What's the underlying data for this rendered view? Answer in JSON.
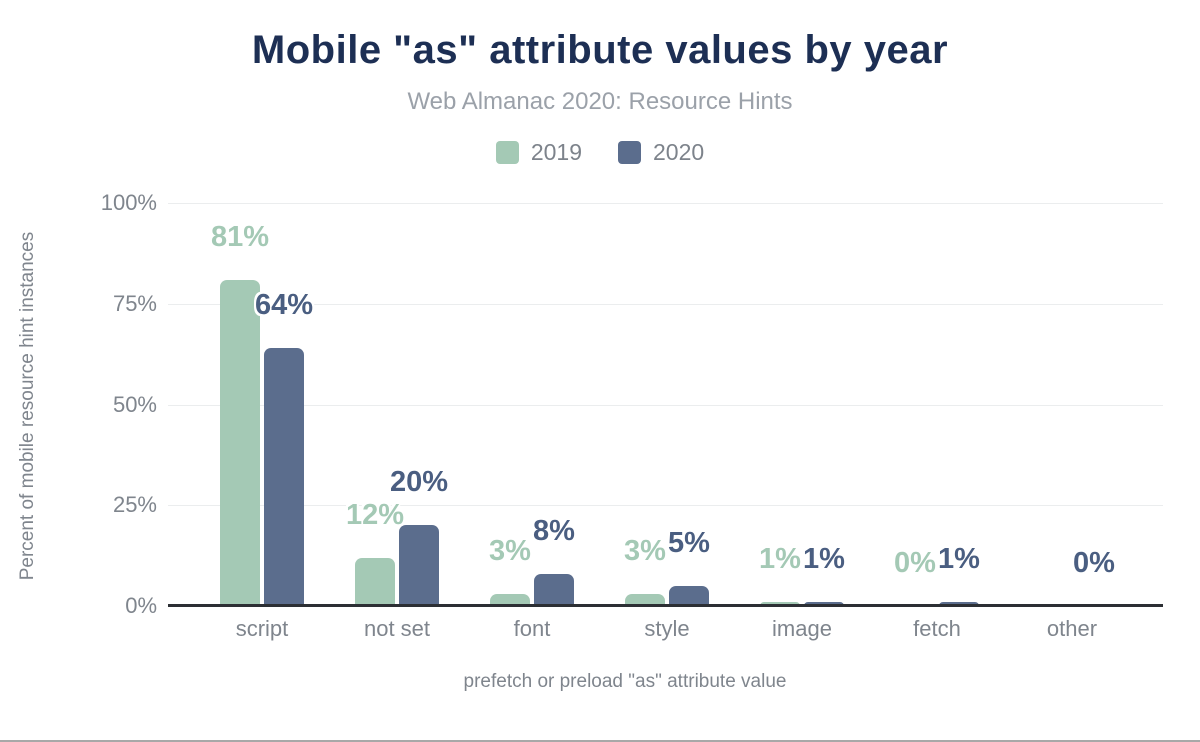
{
  "chart_data": {
    "type": "bar",
    "title": "Mobile \"as\" attribute values by year",
    "subtitle": "Web Almanac 2020: Resource Hints",
    "xlabel": "prefetch or preload \"as\" attribute value",
    "ylabel": "Percent of mobile resource hint instances",
    "categories": [
      "script",
      "not set",
      "font",
      "style",
      "image",
      "fetch",
      "other"
    ],
    "series": [
      {
        "name": "2019",
        "color": "#a4c9b5",
        "label_color": "#a4c9b5",
        "values": [
          81,
          12,
          3,
          3,
          1,
          0,
          null
        ]
      },
      {
        "name": "2020",
        "color": "#5b6d8d",
        "label_color": "#4a5e81",
        "values": [
          64,
          20,
          8,
          5,
          1,
          1,
          0
        ]
      }
    ],
    "ylim": [
      0,
      100
    ],
    "yticks": [
      0,
      25,
      50,
      75,
      100
    ],
    "ytick_labels": [
      "0%",
      "25%",
      "50%",
      "75%",
      "100%"
    ],
    "value_label_suffix": "%",
    "grid": true,
    "legend_position": "top"
  },
  "style_colors": {
    "title": "#1d2f54",
    "subtitle": "#9ba1a9",
    "axis_text": "#7f858d",
    "gridline": "#ebedee",
    "axis_line": "#2c2f34"
  }
}
